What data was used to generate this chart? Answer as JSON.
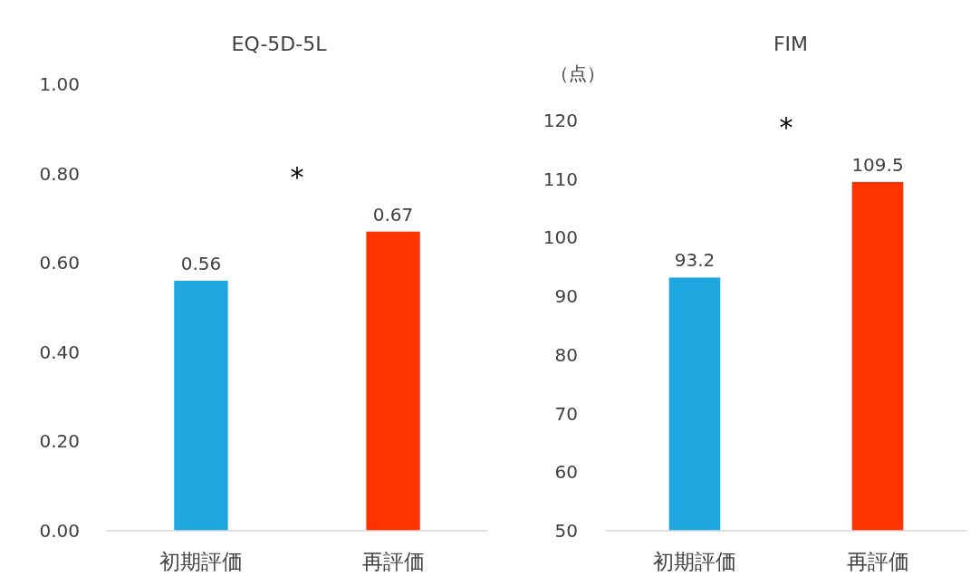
{
  "chart_data": [
    {
      "type": "bar",
      "title": "EQ-5D-5L",
      "categories": [
        "初期評価",
        "再評価"
      ],
      "values": [
        0.56,
        0.67
      ],
      "colors": [
        "#1fa8e0",
        "#ff3300"
      ],
      "ylim": [
        0,
        1
      ],
      "yticks": [
        {
          "value": 0,
          "label": "0.00"
        },
        {
          "value": 0.2,
          "label": "0.20"
        },
        {
          "value": 0.4,
          "label": "0.40"
        },
        {
          "value": 0.6,
          "label": "0.60"
        },
        {
          "value": 0.8,
          "label": "0.80"
        },
        {
          "value": 1,
          "label": "1.00"
        }
      ],
      "data_labels": true,
      "grid": false,
      "annotations": [
        "*"
      ]
    },
    {
      "type": "bar",
      "title": "FIM",
      "ylabel": "（点）",
      "categories": [
        "初期評価",
        "再評価"
      ],
      "values": [
        93.2,
        109.5
      ],
      "colors": [
        "#1fa8e0",
        "#ff3300"
      ],
      "ylim": [
        50,
        120
      ],
      "yticks": [
        50,
        60,
        70,
        80,
        90,
        100,
        110,
        120
      ],
      "data_labels": true,
      "grid": false,
      "annotations": [
        "*"
      ]
    }
  ]
}
